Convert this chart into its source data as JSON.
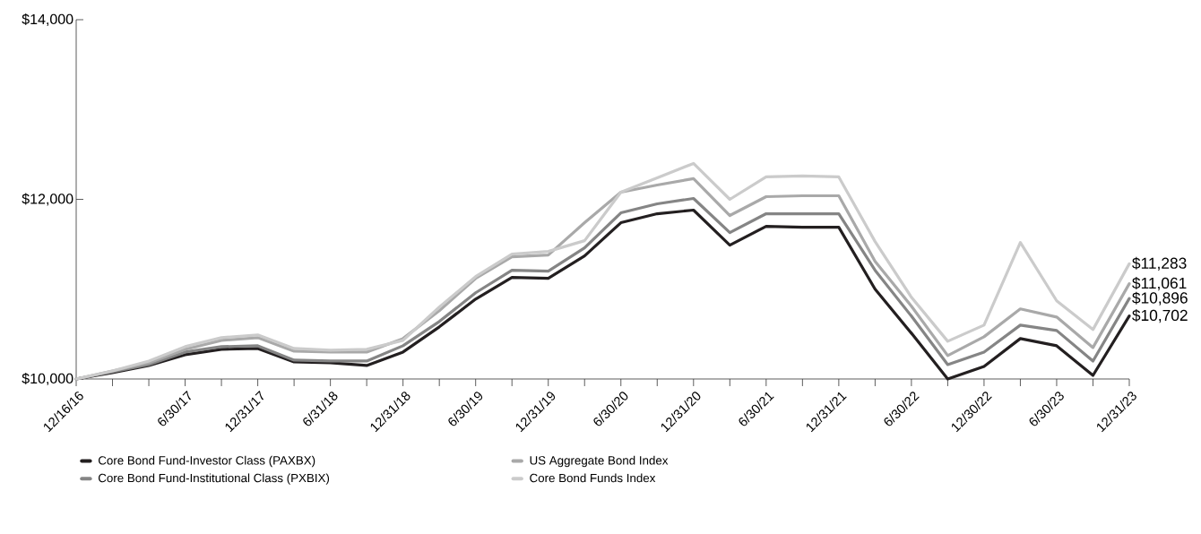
{
  "chart_data": {
    "type": "line",
    "marker": "none",
    "legend": "bottom",
    "categories": [
      "12/16/16",
      null,
      null,
      "6/30/17",
      null,
      "12/31/17",
      null,
      "6/31/18",
      null,
      "12/31/18",
      null,
      "6/30/19",
      null,
      "12/31/19",
      null,
      "6/30/20",
      null,
      "12/31/20",
      null,
      "6/30/21",
      null,
      "12/31/21",
      null,
      "6/30/22",
      null,
      "12/30/22",
      null,
      "6/30/23",
      null,
      "12/31/23"
    ],
    "ylim": [
      10000,
      14000
    ],
    "yticks": [
      {
        "value": 10000,
        "label": "$10,000"
      },
      {
        "value": 12000,
        "label": "$12,000"
      },
      {
        "value": 14000,
        "label": "$14,000"
      }
    ],
    "series": [
      {
        "name": "Core Bond Fund-Investor Class (PAXBX)",
        "color": "#231f20",
        "values": [
          10000,
          10070,
          10150,
          10270,
          10330,
          10340,
          10190,
          10180,
          10150,
          10300,
          10580,
          10890,
          11130,
          11120,
          11370,
          11740,
          11840,
          11880,
          11490,
          11700,
          11690,
          11690,
          11000,
          10510,
          10000,
          10140,
          10450,
          10370,
          10040,
          10702
        ],
        "value_labels": [
          null,
          null,
          null,
          null,
          null,
          null,
          null,
          null,
          null,
          null,
          null,
          null,
          null,
          null,
          null,
          null,
          null,
          null,
          null,
          null,
          null,
          null,
          null,
          null,
          null,
          null,
          null,
          null,
          null,
          "$10,702"
        ]
      },
      {
        "name": "Core Bond Fund-Institutional Class (PXBIX)",
        "color": "#858585",
        "values": [
          10000,
          10080,
          10160,
          10300,
          10360,
          10370,
          10210,
          10200,
          10200,
          10370,
          10640,
          10960,
          11210,
          11200,
          11460,
          11850,
          11950,
          12010,
          11630,
          11840,
          11840,
          11840,
          11210,
          10700,
          10160,
          10300,
          10600,
          10540,
          10200,
          10896
        ],
        "value_labels": [
          null,
          null,
          null,
          null,
          null,
          null,
          null,
          null,
          null,
          null,
          null,
          null,
          null,
          null,
          null,
          null,
          null,
          null,
          null,
          null,
          null,
          null,
          null,
          null,
          null,
          null,
          null,
          null,
          null,
          "$10,896"
        ]
      },
      {
        "name": "US Aggregate Bond Index",
        "color": "#a9a9a9",
        "values": [
          10000,
          10090,
          10180,
          10330,
          10430,
          10460,
          10310,
          10300,
          10300,
          10450,
          10760,
          11120,
          11360,
          11380,
          11740,
          12080,
          12160,
          12230,
          11820,
          12030,
          12040,
          12040,
          11310,
          10810,
          10260,
          10470,
          10780,
          10690,
          10350,
          11061
        ],
        "value_labels": [
          null,
          null,
          null,
          null,
          null,
          null,
          null,
          null,
          null,
          null,
          null,
          null,
          null,
          null,
          null,
          null,
          null,
          null,
          null,
          null,
          null,
          null,
          null,
          null,
          null,
          null,
          null,
          null,
          null,
          "$11,061"
        ]
      },
      {
        "name": "Core Bond Funds Index",
        "color": "#cbcbcb",
        "values": [
          10000,
          10090,
          10200,
          10360,
          10460,
          10490,
          10340,
          10320,
          10330,
          10430,
          10800,
          11140,
          11390,
          11420,
          11540,
          12080,
          12240,
          12400,
          12000,
          12250,
          12260,
          12250,
          11530,
          10910,
          10420,
          10600,
          11520,
          10870,
          10550,
          11283
        ],
        "value_labels": [
          null,
          null,
          null,
          null,
          null,
          null,
          null,
          null,
          null,
          null,
          null,
          null,
          null,
          null,
          null,
          null,
          null,
          null,
          null,
          null,
          null,
          null,
          null,
          null,
          null,
          null,
          null,
          null,
          null,
          "$11,283"
        ]
      }
    ]
  }
}
